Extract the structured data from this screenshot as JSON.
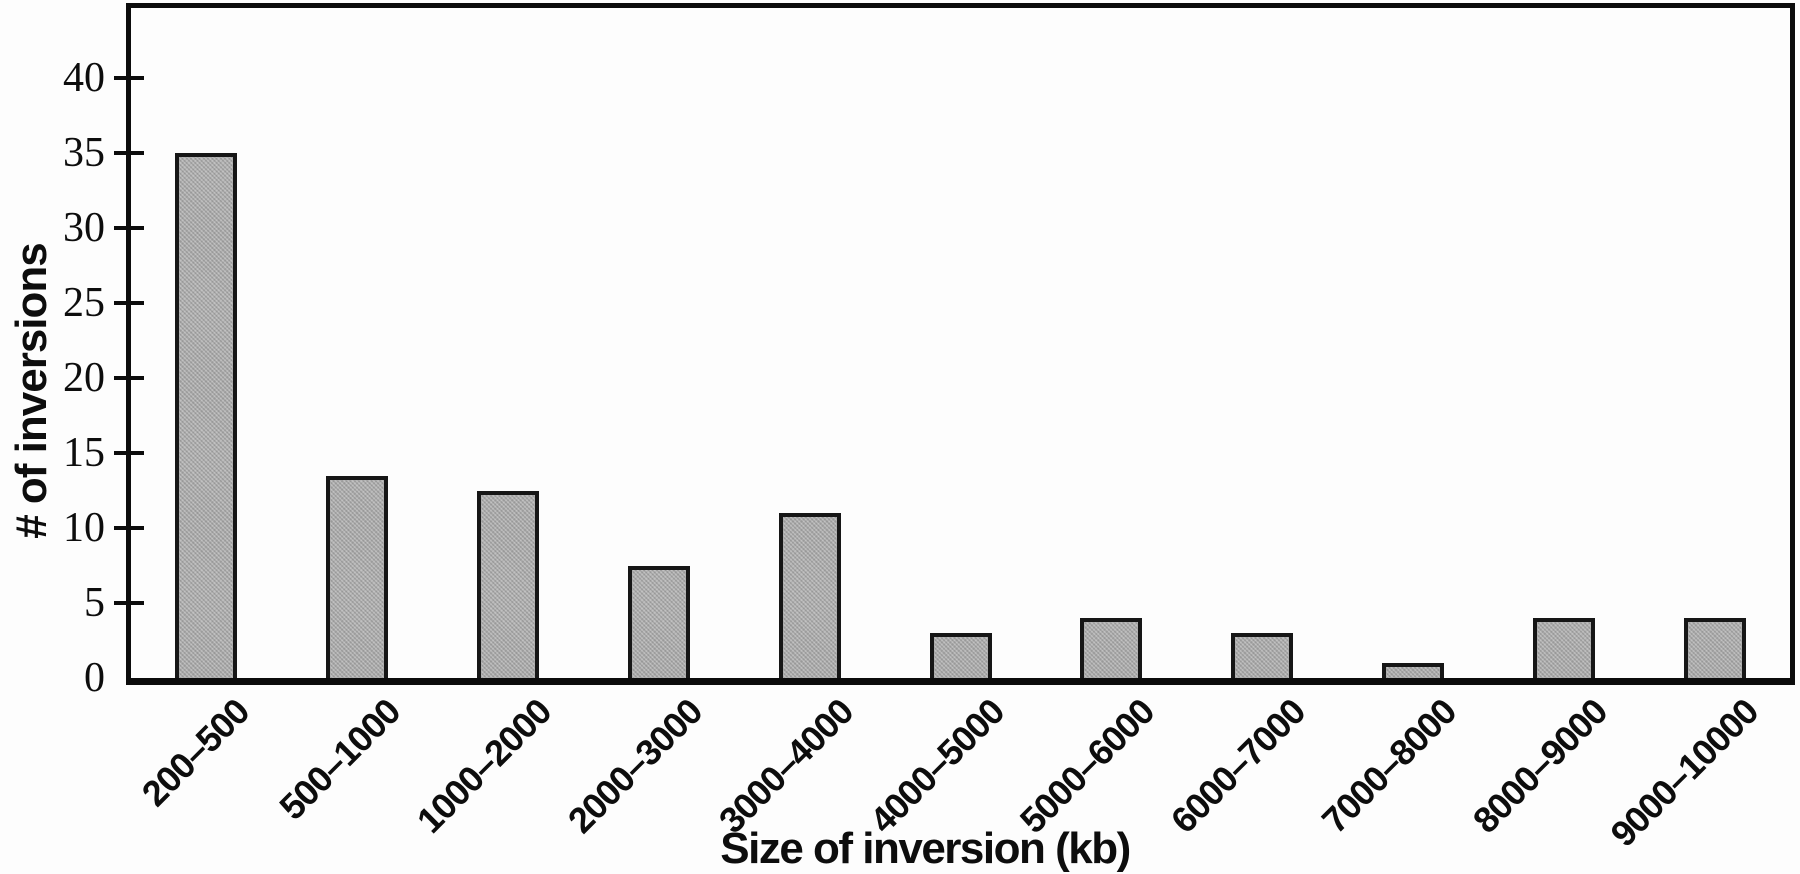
{
  "chart_data": {
    "type": "bar",
    "title": "",
    "xlabel": "Size of inversion (kb)",
    "ylabel": "# of inversions",
    "categories": [
      "200–500",
      "500–1000",
      "1000–2000",
      "2000–3000",
      "3000–4000",
      "4000–5000",
      "5000–6000",
      "6000–7000",
      "7000–8000",
      "8000–9000",
      "9000–10000"
    ],
    "values": [
      35,
      13.5,
      12.5,
      7.5,
      11,
      3,
      4,
      3,
      1,
      4,
      4
    ],
    "yticks": [
      0,
      5,
      10,
      15,
      20,
      25,
      30,
      35,
      40
    ],
    "ylim": [
      0,
      44.7
    ],
    "grid": false,
    "legend_position": "none",
    "bar_fill_color": "#b7b7b7",
    "bar_border_color": "#161616",
    "axis_color": "#0c0c0c",
    "x_label_rotation_deg": -45
  }
}
